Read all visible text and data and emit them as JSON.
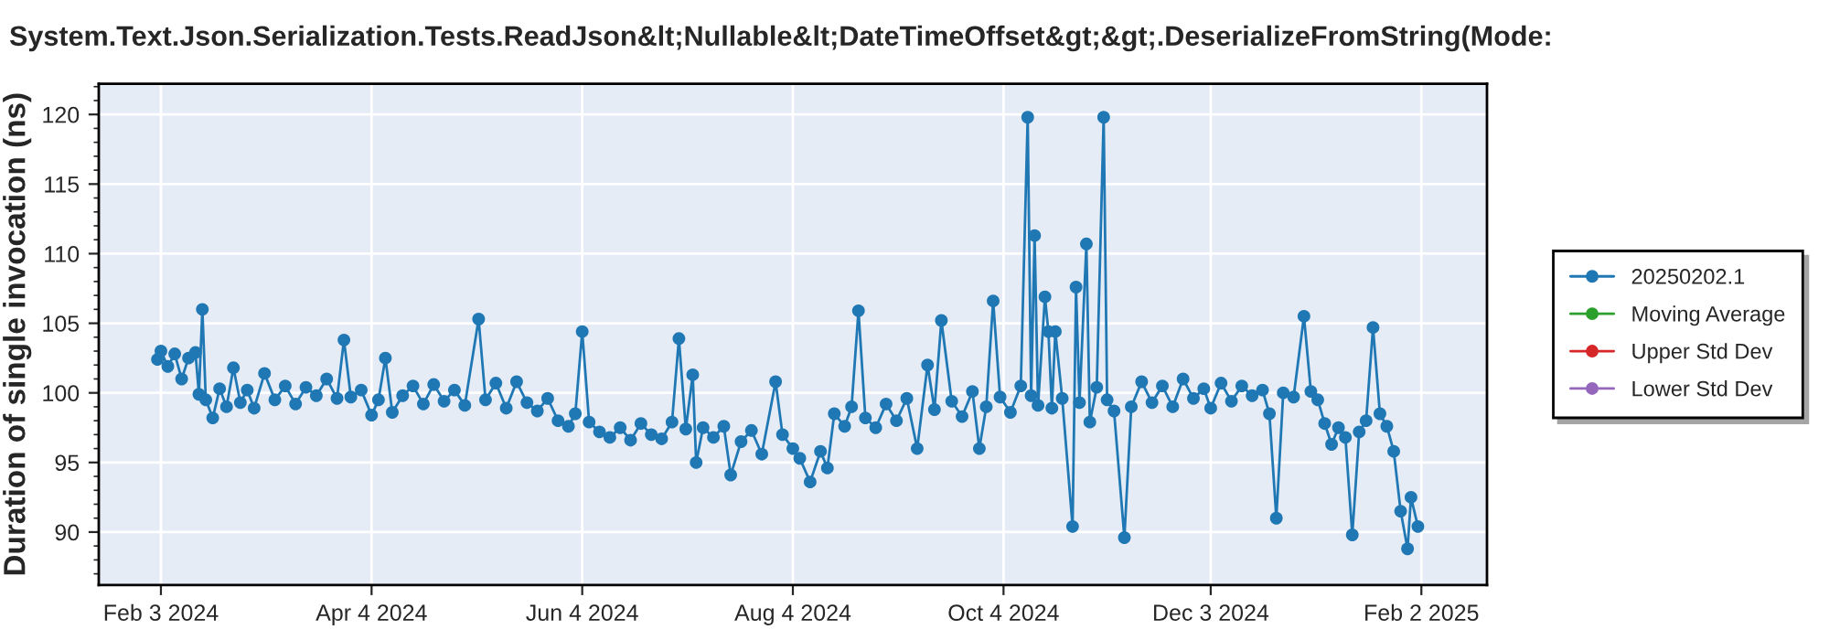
{
  "chart_data": {
    "type": "line",
    "title": "System.Text.Json.Serialization.Tests.ReadJson&lt;Nullable&lt;DateTimeOffset&gt;&gt;.DeserializeFromString(Mode:",
    "ylabel": "Duration of single invocation (ns)",
    "xlim": [
      "2024-01-16",
      "2025-02-21"
    ],
    "ylim": [
      86.2,
      122.2
    ],
    "xticks": [
      {
        "value": "2024-02-03",
        "label": "Feb 3 2024"
      },
      {
        "value": "2024-04-04",
        "label": "Apr 4 2024"
      },
      {
        "value": "2024-06-04",
        "label": "Jun 4 2024"
      },
      {
        "value": "2024-08-04",
        "label": "Aug 4 2024"
      },
      {
        "value": "2024-10-04",
        "label": "Oct 4 2024"
      },
      {
        "value": "2024-12-03",
        "label": "Dec 3 2024"
      },
      {
        "value": "2025-02-02",
        "label": "Feb 2 2025"
      }
    ],
    "yticks": [
      90,
      95,
      100,
      105,
      110,
      115,
      120
    ],
    "grid": true,
    "legend": "right",
    "marker": "circle",
    "line_style": "solid",
    "series": [
      {
        "name": "20250202.1",
        "color": "#1f77b4",
        "x": [
          "2024-02-02",
          "2024-02-03",
          "2024-02-05",
          "2024-02-07",
          "2024-02-09",
          "2024-02-11",
          "2024-02-13",
          "2024-02-14",
          "2024-02-15",
          "2024-02-16",
          "2024-02-18",
          "2024-02-20",
          "2024-02-22",
          "2024-02-24",
          "2024-02-26",
          "2024-02-28",
          "2024-03-01",
          "2024-03-04",
          "2024-03-07",
          "2024-03-10",
          "2024-03-13",
          "2024-03-16",
          "2024-03-19",
          "2024-03-22",
          "2024-03-25",
          "2024-03-27",
          "2024-03-29",
          "2024-04-01",
          "2024-04-04",
          "2024-04-06",
          "2024-04-08",
          "2024-04-10",
          "2024-04-13",
          "2024-04-16",
          "2024-04-19",
          "2024-04-22",
          "2024-04-25",
          "2024-04-28",
          "2024-05-01",
          "2024-05-05",
          "2024-05-07",
          "2024-05-10",
          "2024-05-13",
          "2024-05-16",
          "2024-05-19",
          "2024-05-22",
          "2024-05-25",
          "2024-05-28",
          "2024-05-31",
          "2024-06-02",
          "2024-06-04",
          "2024-06-06",
          "2024-06-09",
          "2024-06-12",
          "2024-06-15",
          "2024-06-18",
          "2024-06-21",
          "2024-06-24",
          "2024-06-27",
          "2024-06-30",
          "2024-07-02",
          "2024-07-04",
          "2024-07-06",
          "2024-07-07",
          "2024-07-09",
          "2024-07-12",
          "2024-07-15",
          "2024-07-17",
          "2024-07-20",
          "2024-07-23",
          "2024-07-26",
          "2024-07-30",
          "2024-08-01",
          "2024-08-04",
          "2024-08-06",
          "2024-08-09",
          "2024-08-12",
          "2024-08-14",
          "2024-08-16",
          "2024-08-19",
          "2024-08-21",
          "2024-08-23",
          "2024-08-25",
          "2024-08-28",
          "2024-08-31",
          "2024-09-03",
          "2024-09-06",
          "2024-09-09",
          "2024-09-12",
          "2024-09-14",
          "2024-09-16",
          "2024-09-19",
          "2024-09-22",
          "2024-09-25",
          "2024-09-27",
          "2024-09-29",
          "2024-10-01",
          "2024-10-03",
          "2024-10-06",
          "2024-10-09",
          "2024-10-11",
          "2024-10-12",
          "2024-10-13",
          "2024-10-14",
          "2024-10-16",
          "2024-10-17",
          "2024-10-18",
          "2024-10-19",
          "2024-10-21",
          "2024-10-24",
          "2024-10-25",
          "2024-10-26",
          "2024-10-28",
          "2024-10-29",
          "2024-10-31",
          "2024-11-02",
          "2024-11-03",
          "2024-11-05",
          "2024-11-08",
          "2024-11-10",
          "2024-11-13",
          "2024-11-16",
          "2024-11-19",
          "2024-11-22",
          "2024-11-25",
          "2024-11-28",
          "2024-12-01",
          "2024-12-03",
          "2024-12-06",
          "2024-12-09",
          "2024-12-12",
          "2024-12-15",
          "2024-12-18",
          "2024-12-20",
          "2024-12-22",
          "2024-12-24",
          "2024-12-27",
          "2024-12-30",
          "2025-01-01",
          "2025-01-03",
          "2025-01-05",
          "2025-01-07",
          "2025-01-09",
          "2025-01-11",
          "2025-01-13",
          "2025-01-15",
          "2025-01-17",
          "2025-01-19",
          "2025-01-21",
          "2025-01-23",
          "2025-01-25",
          "2025-01-27",
          "2025-01-29",
          "2025-01-30",
          "2025-02-01"
        ],
        "values": [
          102.4,
          103.0,
          101.9,
          102.8,
          101.0,
          102.5,
          102.9,
          99.9,
          106.0,
          99.5,
          98.2,
          100.3,
          99.0,
          101.8,
          99.3,
          100.2,
          98.9,
          101.4,
          99.5,
          100.5,
          99.2,
          100.4,
          99.8,
          101.0,
          99.6,
          103.8,
          99.7,
          100.2,
          98.4,
          99.5,
          102.5,
          98.6,
          99.8,
          100.5,
          99.2,
          100.6,
          99.4,
          100.2,
          99.1,
          105.3,
          99.5,
          100.7,
          98.9,
          100.8,
          99.3,
          98.7,
          99.6,
          98.0,
          97.6,
          98.5,
          104.4,
          97.9,
          97.2,
          96.8,
          97.5,
          96.6,
          97.8,
          97.0,
          96.7,
          97.9,
          103.9,
          97.4,
          101.3,
          95.0,
          97.5,
          96.8,
          97.6,
          94.1,
          96.5,
          97.3,
          95.6,
          100.8,
          97.0,
          96.0,
          95.3,
          93.6,
          95.8,
          94.6,
          98.5,
          97.6,
          99.0,
          105.9,
          98.2,
          97.5,
          99.2,
          98.0,
          99.6,
          96.0,
          102.0,
          98.8,
          105.2,
          99.4,
          98.3,
          100.1,
          96.0,
          99.0,
          106.6,
          99.7,
          98.6,
          100.5,
          119.8,
          99.8,
          111.3,
          99.1,
          106.9,
          104.4,
          98.9,
          104.4,
          99.6,
          90.4,
          107.6,
          99.3,
          110.7,
          97.9,
          100.4,
          119.8,
          99.5,
          98.7,
          89.6,
          99.0,
          100.8,
          99.3,
          100.5,
          99.0,
          101.0,
          99.6,
          100.3,
          98.9,
          100.7,
          99.4,
          100.5,
          99.8,
          100.2,
          98.5,
          91.0,
          100.0,
          99.7,
          105.5,
          100.1,
          99.5,
          97.8,
          96.3,
          97.5,
          96.8,
          89.8,
          97.2,
          98.0,
          104.7,
          98.5,
          97.6,
          95.8,
          91.5,
          88.8,
          92.5,
          90.4
        ]
      },
      {
        "name": "Moving Average",
        "color": "#2ca02c"
      },
      {
        "name": "Upper Std Dev",
        "color": "#d62728"
      },
      {
        "name": "Lower Std Dev",
        "color": "#9467bd"
      }
    ]
  }
}
